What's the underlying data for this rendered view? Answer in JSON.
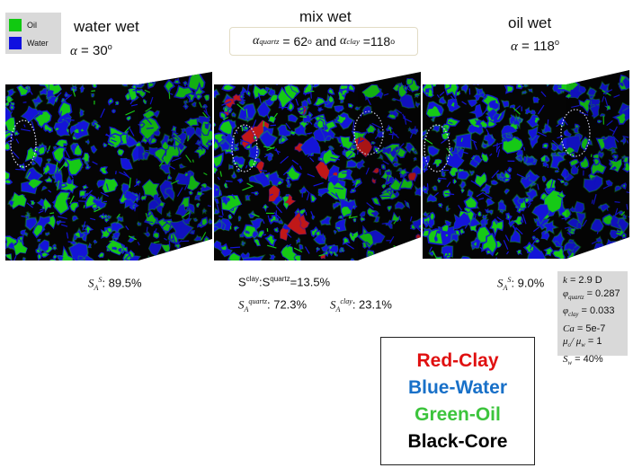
{
  "legend": [
    {
      "label": "Oil",
      "color": "#11c911"
    },
    {
      "label": "Water",
      "color": "#1010e0"
    }
  ],
  "panels": {
    "water_wet": {
      "title": "water wet",
      "alpha_symbol": "α",
      "alpha_value": "= 30",
      "alpha_unit": "o"
    },
    "mix_wet": {
      "title": "mix wet",
      "alpha1_sub": "quartz",
      "alpha1_value": "= 62",
      "alpha_and": "and",
      "alpha2_sub": "clay",
      "alpha2_value": "=118",
      "alpha_unit": "o"
    },
    "oil_wet": {
      "title": "oil wet",
      "alpha_symbol": "α",
      "alpha_value": "= 118",
      "alpha_unit": "o"
    }
  },
  "stats": {
    "water_wet": {
      "prefix": "S",
      "sub": "A",
      "sup": "S",
      "value": ": 89.5%"
    },
    "mix_ratio": {
      "s1": "S",
      "sup1": "clay",
      "colon": ":",
      "s2": "S",
      "sup2": "quartz",
      "value": "=13.5%"
    },
    "mix_quartz": {
      "prefix": "S",
      "sub": "A",
      "sup": "quartz",
      "value": ": 72.3%"
    },
    "mix_clay": {
      "prefix": "S",
      "sub": "A",
      "sup": "clay",
      "value": ": 23.1%"
    },
    "oil_wet": {
      "prefix": "S",
      "sub": "A",
      "sup": "S",
      "value": ": 9.0%"
    }
  },
  "properties": [
    {
      "name": "k",
      "sub": "",
      "value": " = 2.9 D"
    },
    {
      "name": "φ",
      "sub": "quartz",
      "value": " = 0.287"
    },
    {
      "name": "φ",
      "sub": "clay",
      "value": " = 0.033"
    },
    {
      "name": "Ca",
      "sub": "",
      "value": " = 5e-7"
    },
    {
      "name": "μ",
      "sub": "o",
      "value": "/ μ",
      "sub2": "w",
      "value2": " = 1"
    },
    {
      "name": "S",
      "sub": "w",
      "value": " = 40%"
    }
  ],
  "key": [
    {
      "text": "Red-Clay",
      "color": "#e01010"
    },
    {
      "text": "Blue-Water",
      "color": "#1870c8"
    },
    {
      "text": "Green-Oil",
      "color": "#3cc43c"
    },
    {
      "text": "Black-Core",
      "color": "#000000"
    }
  ],
  "colors": {
    "core": "#050505",
    "oil": "#16c916",
    "water": "#1414d8",
    "clay": "#c01818",
    "props_bg": "#d9d9d9"
  }
}
